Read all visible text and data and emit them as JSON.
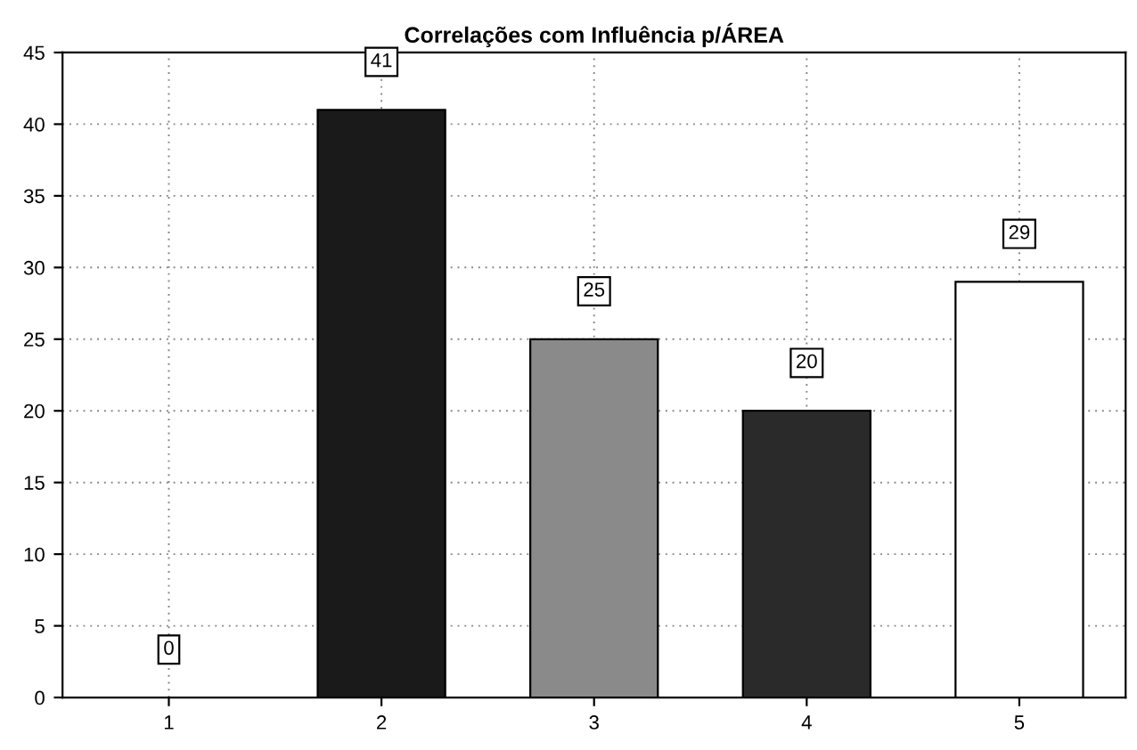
{
  "chart_data": {
    "type": "bar",
    "title": "Correlações com Influência p/ÁREA",
    "categories": [
      "1",
      "2",
      "3",
      "4",
      "5"
    ],
    "values": [
      0,
      41,
      25,
      20,
      29
    ],
    "colors": [
      "#000000",
      "#1a1a1a",
      "#8a8a8a",
      "#2a2a2a",
      "#ffffff"
    ],
    "ylim": [
      0,
      45
    ],
    "yticks": [
      0,
      5,
      10,
      15,
      20,
      25,
      30,
      35,
      40,
      45
    ],
    "grid": true,
    "data_labels": true
  }
}
